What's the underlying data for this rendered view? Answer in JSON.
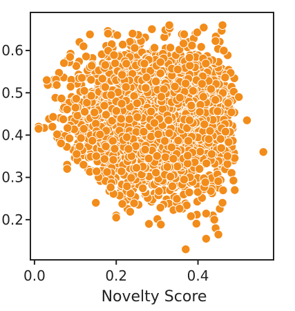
{
  "chart_data": {
    "type": "scatter",
    "title": "",
    "xlabel": "Novelty Score",
    "ylabel": "",
    "xlim": [
      -0.01,
      0.585
    ],
    "ylim": [
      0.105,
      0.69
    ],
    "x_ticks": [
      "0.0",
      "0.2",
      "0.4"
    ],
    "y_ticks": [
      "0.2",
      "0.3",
      "0.4",
      "0.5",
      "0.6"
    ],
    "grid": false,
    "legend": "none",
    "marker_color": "#F28C1A",
    "marker_edge_color": "#ffffff",
    "point_count_note": "dense cloud of several thousand points",
    "outliers": [
      {
        "x": 0.56,
        "y": 0.36
      },
      {
        "x": 0.37,
        "y": 0.13
      },
      {
        "x": 0.42,
        "y": 0.155
      },
      {
        "x": 0.45,
        "y": 0.165
      },
      {
        "x": 0.01,
        "y": 0.42
      },
      {
        "x": 0.01,
        "y": 0.415
      },
      {
        "x": 0.15,
        "y": 0.24
      },
      {
        "x": 0.2,
        "y": 0.21
      },
      {
        "x": 0.2,
        "y": 0.205
      },
      {
        "x": 0.28,
        "y": 0.19
      },
      {
        "x": 0.5,
        "y": 0.49
      },
      {
        "x": 0.52,
        "y": 0.435
      },
      {
        "x": 0.11,
        "y": 0.62
      },
      {
        "x": 0.12,
        "y": 0.61
      },
      {
        "x": 0.18,
        "y": 0.64
      },
      {
        "x": 0.24,
        "y": 0.64
      },
      {
        "x": 0.33,
        "y": 0.66
      },
      {
        "x": 0.46,
        "y": 0.66
      },
      {
        "x": 0.08,
        "y": 0.33
      },
      {
        "x": 0.08,
        "y": 0.32
      },
      {
        "x": 0.12,
        "y": 0.33
      },
      {
        "x": 0.49,
        "y": 0.27
      },
      {
        "x": 0.46,
        "y": 0.24
      },
      {
        "x": 0.44,
        "y": 0.2
      },
      {
        "x": 0.03,
        "y": 0.53
      }
    ],
    "cloud": {
      "x_range": [
        0.02,
        0.5
      ],
      "y_range": [
        0.17,
        0.66
      ],
      "center": {
        "x": 0.3,
        "y": 0.43
      }
    }
  }
}
